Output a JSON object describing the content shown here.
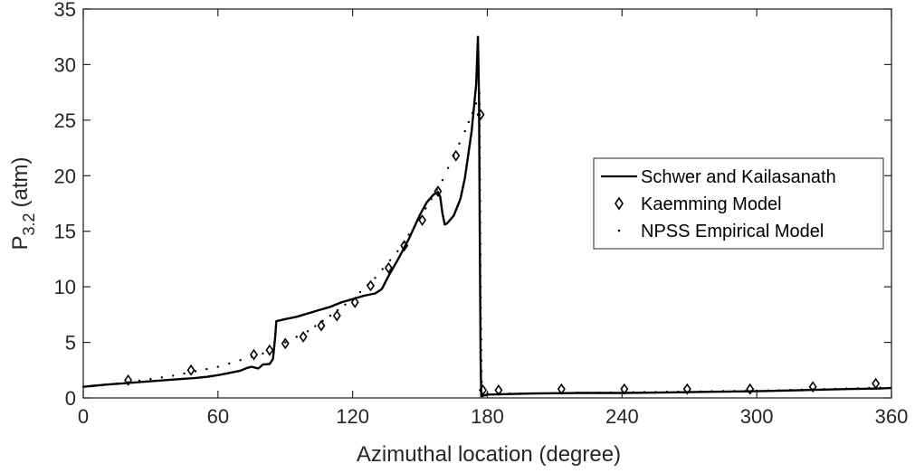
{
  "chart_data": {
    "type": "line",
    "xlabel": "Azimuthal location (degree)",
    "ylabel": {
      "main": "P",
      "subscript": "3.2",
      "unit": "(atm)"
    },
    "xlim": [
      0,
      360
    ],
    "ylim": [
      0,
      35
    ],
    "xticks": [
      "0",
      "60",
      "120",
      "180",
      "240",
      "300",
      "360"
    ],
    "yticks": [
      "0",
      "5",
      "10",
      "15",
      "20",
      "25",
      "30",
      "35"
    ],
    "grid": false,
    "legend_position": "right",
    "series": [
      {
        "name": "Schwer and Kailasanath",
        "style": "solid",
        "color": "#000000",
        "x": [
          0,
          5,
          10,
          20,
          30,
          40,
          50,
          55,
          60,
          65,
          70,
          73,
          75,
          78,
          80,
          83,
          84.5,
          85.5,
          86,
          90,
          95,
          100,
          105,
          110,
          115,
          120,
          125,
          130,
          133,
          136,
          140,
          145,
          150,
          153,
          156,
          158,
          159,
          160,
          161,
          162,
          165,
          168,
          170,
          173,
          175,
          175.8,
          176.3,
          176.6,
          177,
          177.3,
          180,
          190,
          200,
          220,
          240,
          260,
          280,
          300,
          320,
          340,
          355,
          360
        ],
        "y": [
          1.0,
          1.1,
          1.2,
          1.35,
          1.5,
          1.65,
          1.8,
          1.9,
          2.05,
          2.25,
          2.45,
          2.7,
          2.8,
          2.65,
          3.0,
          3.05,
          3.5,
          5.5,
          6.9,
          7.1,
          7.3,
          7.6,
          7.9,
          8.2,
          8.6,
          8.9,
          9.2,
          9.4,
          9.8,
          11.0,
          12.4,
          14.3,
          16.5,
          17.6,
          18.3,
          18.55,
          18.1,
          16.6,
          15.6,
          15.7,
          16.4,
          17.9,
          19.8,
          24.0,
          28.2,
          32.5,
          27.0,
          15.0,
          3.0,
          0.15,
          0.3,
          0.35,
          0.4,
          0.45,
          0.45,
          0.5,
          0.55,
          0.6,
          0.7,
          0.8,
          0.85,
          0.9
        ]
      },
      {
        "name": "Kaemming Model",
        "style": "diamond",
        "color": "#000000",
        "x": [
          20,
          48,
          76,
          83,
          90,
          98,
          106,
          113,
          121,
          128,
          136,
          143,
          151,
          158,
          166,
          177,
          178,
          185,
          213,
          241,
          269,
          297,
          325,
          353
        ],
        "y": [
          1.6,
          2.5,
          3.9,
          4.3,
          4.9,
          5.5,
          6.5,
          7.4,
          8.6,
          10.1,
          11.7,
          13.7,
          16.0,
          18.6,
          21.8,
          25.5,
          0.7,
          0.7,
          0.8,
          0.8,
          0.8,
          0.8,
          1.0,
          1.3
        ]
      },
      {
        "name": "NPSS Empirical Model",
        "style": "dotted",
        "color": "#000000",
        "x": [
          0,
          20,
          40,
          60,
          80,
          90,
          100,
          110,
          120,
          130,
          140,
          150,
          160,
          165,
          170,
          175,
          176.5,
          177,
          177.5,
          180,
          200,
          220,
          240,
          260,
          280,
          300,
          320,
          340,
          360
        ],
        "y": [
          1.0,
          1.4,
          2.0,
          2.8,
          4.0,
          5.0,
          6.0,
          7.4,
          8.9,
          10.8,
          13.2,
          16.2,
          19.6,
          21.8,
          24.0,
          26.5,
          27.4,
          10.0,
          0.5,
          0.4,
          0.4,
          0.45,
          0.5,
          0.55,
          0.6,
          0.65,
          0.75,
          0.85,
          0.95
        ]
      }
    ]
  }
}
